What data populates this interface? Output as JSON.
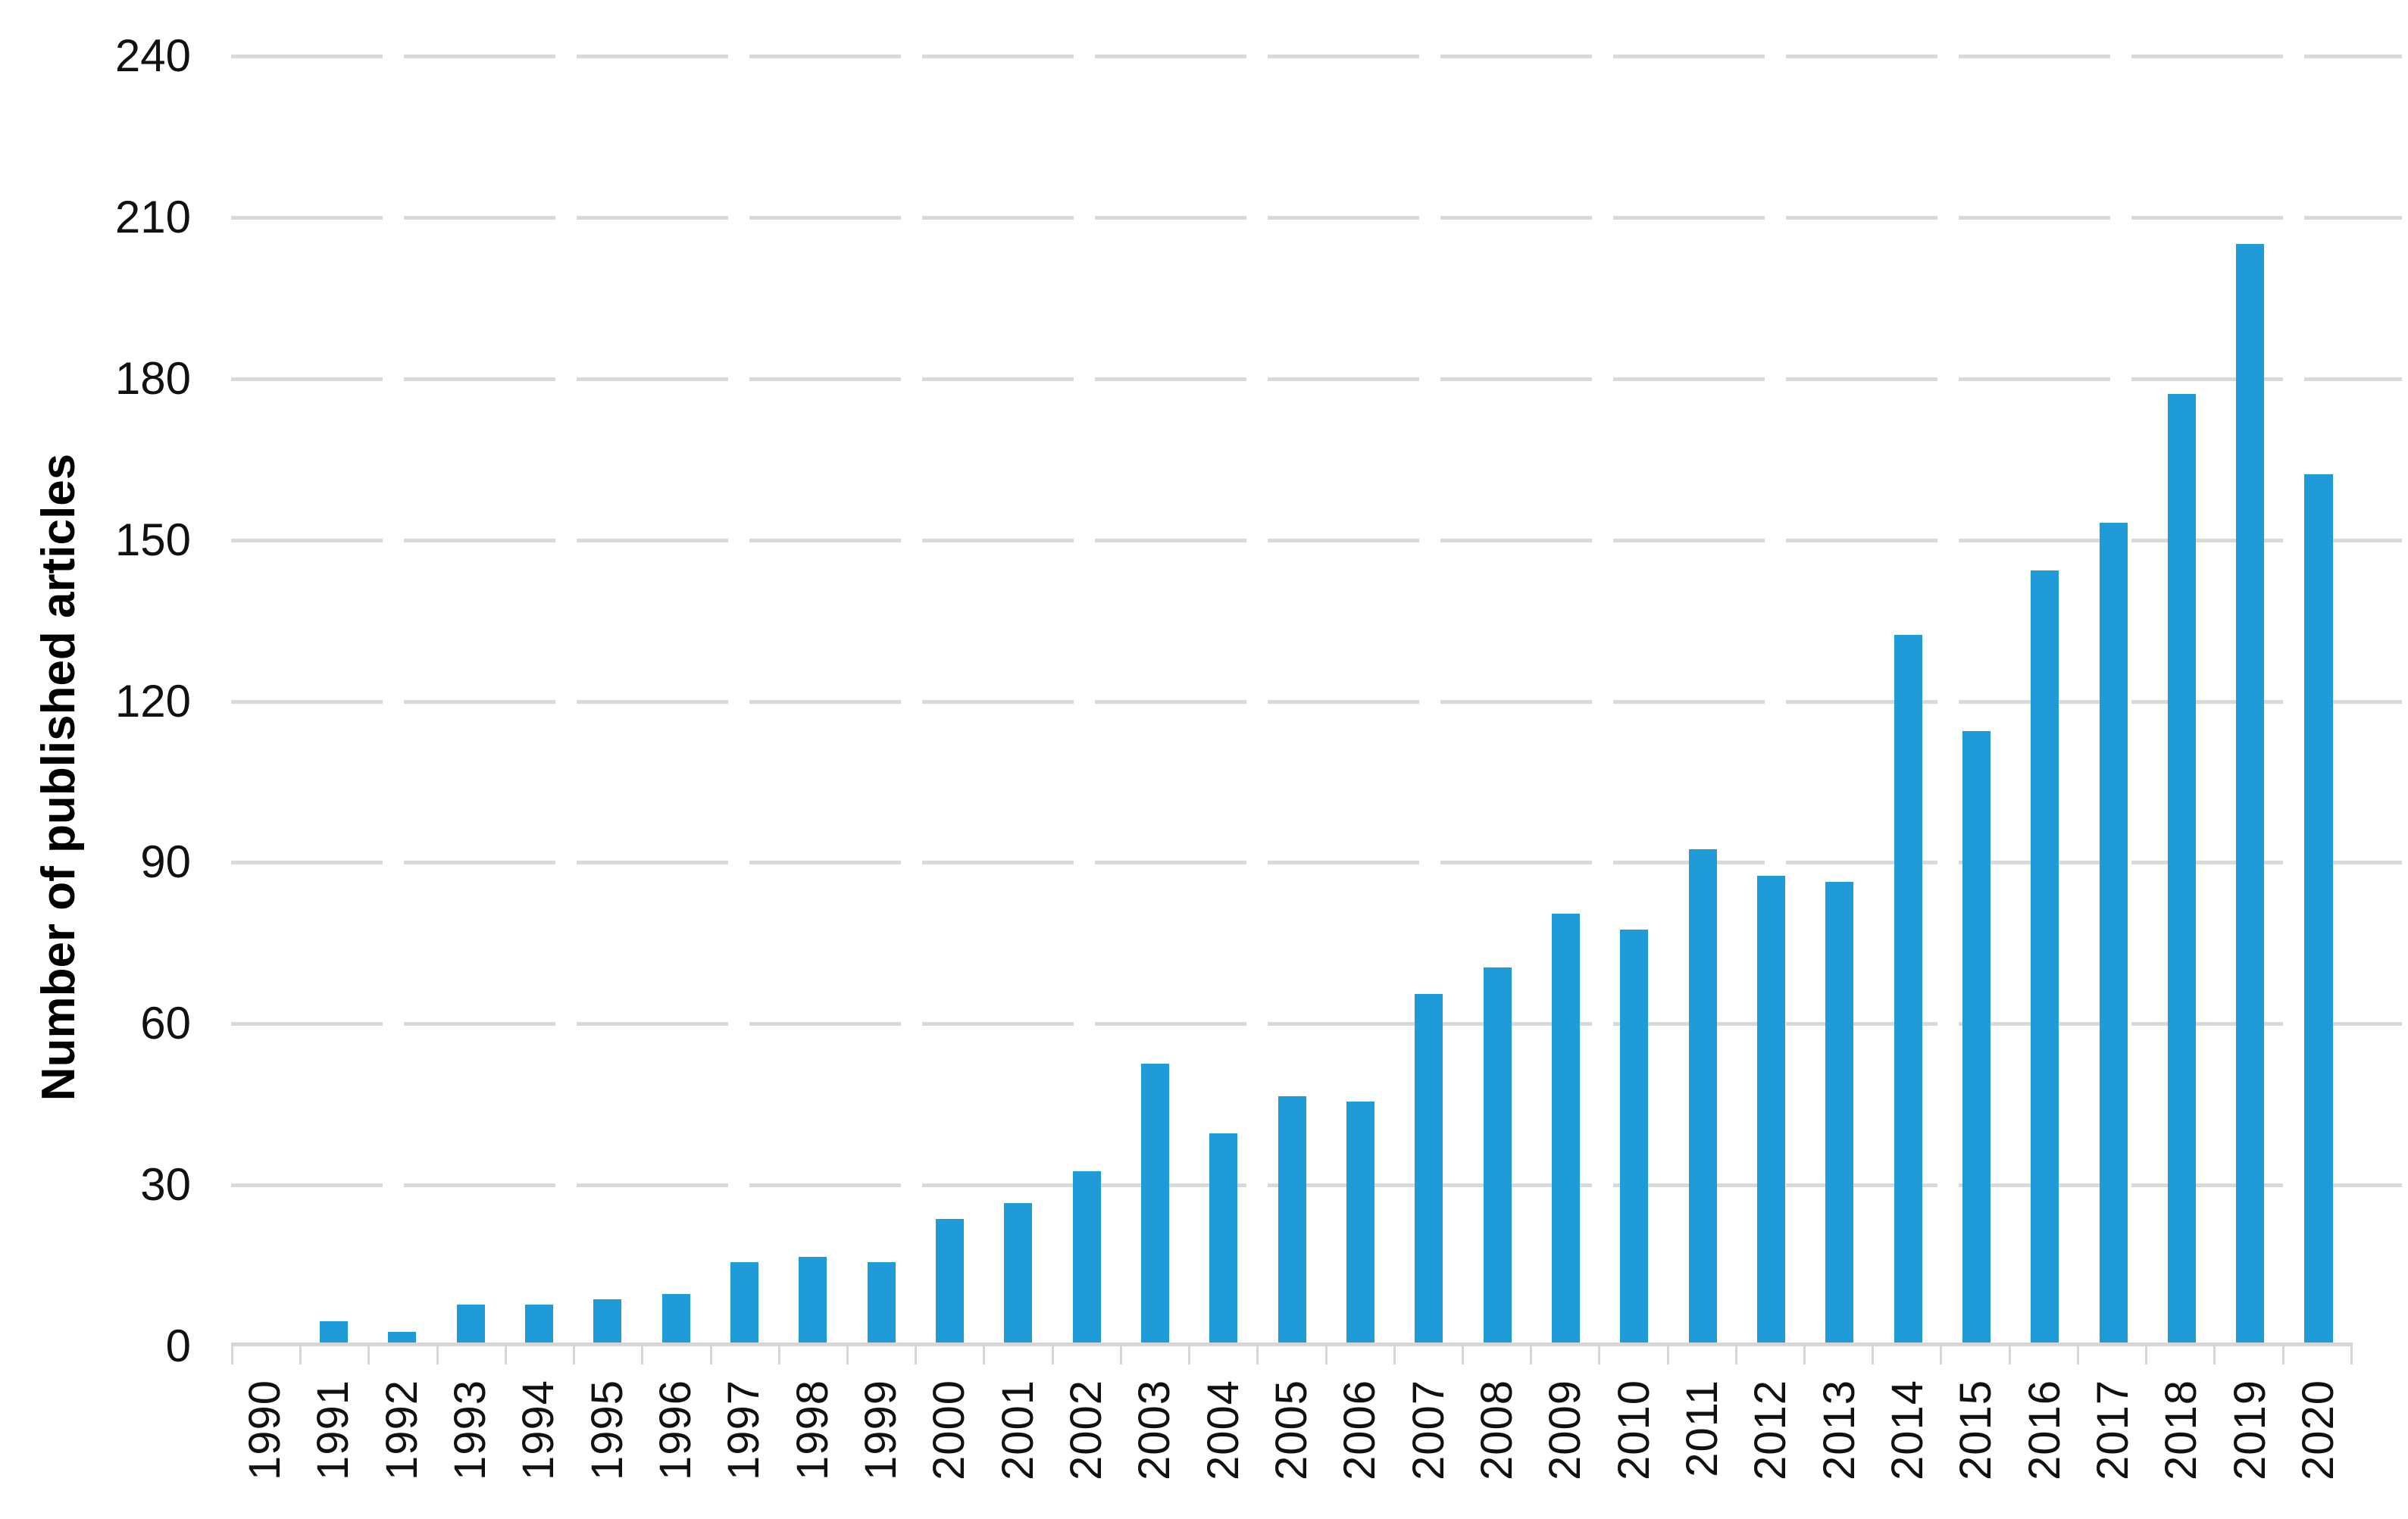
{
  "chart_data": {
    "type": "bar",
    "title": "",
    "xlabel": "",
    "ylabel": "Number of published articles",
    "categories": [
      "1990",
      "1991",
      "1992",
      "1993",
      "1994",
      "1995",
      "1996",
      "1997",
      "1998",
      "1999",
      "2000",
      "2001",
      "2002",
      "2003",
      "2004",
      "2005",
      "2006",
      "2007",
      "2008",
      "2009",
      "2010",
      "2011",
      "2012",
      "2013",
      "2014",
      "2015",
      "2016",
      "2017",
      "2018",
      "2019",
      "2020"
    ],
    "values": [
      0,
      4,
      2,
      7,
      7,
      8,
      9,
      15,
      16,
      15,
      23,
      26,
      32,
      52,
      39,
      46,
      45,
      65,
      70,
      80,
      77,
      92,
      87,
      86,
      132,
      114,
      144,
      153,
      177,
      205,
      162
    ],
    "ylim": [
      0,
      240
    ],
    "ytick_step": 30,
    "y_tick_labels": [
      "0",
      "30",
      "60",
      "90",
      "120",
      "150",
      "180",
      "210",
      "240"
    ],
    "legend": "none",
    "grid": "horizontal-dashed",
    "bar_color": "#1F9CD7",
    "grid_color": "#D9D9D9",
    "axis_color": "#D6D6D6",
    "text_color": "#111111",
    "background_color": "#FFFFFF"
  }
}
